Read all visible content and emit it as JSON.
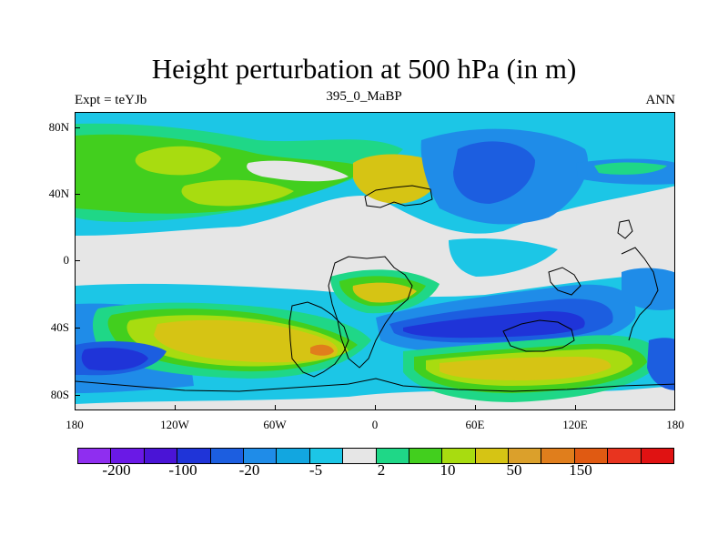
{
  "title": "Height perturbation at 500 hPa (in m)",
  "subtitle_left": "Expt = teYJb",
  "subtitle_center": "395_0_MaBP",
  "subtitle_right": "ANN",
  "y_axis_labels": [
    "80N",
    "40N",
    "0",
    "40S",
    "80S"
  ],
  "x_axis_labels": [
    "180",
    "120W",
    "60W",
    "0",
    "60E",
    "120E",
    "180"
  ],
  "colorbar": {
    "colors": [
      "#8f2ef0",
      "#6a19e6",
      "#4a14d6",
      "#1f34d8",
      "#1c5ee0",
      "#1f8ce8",
      "#12a6e0",
      "#1cc6e6",
      "#e6e6e6",
      "#1fd787",
      "#42cf1e",
      "#a8dc10",
      "#d6c414",
      "#dba02b",
      "#e07e1c",
      "#e05a12",
      "#e8341f",
      "#e01212"
    ],
    "labels": [
      "-200",
      "-100",
      "-20",
      "-5",
      "2",
      "10",
      "50",
      "150"
    ]
  },
  "map_colors": {
    "background": "#e6e6e6",
    "deep_blue": "#1f34d8",
    "blue": "#1c5ee0",
    "mid_blue": "#1f8ce8",
    "light_blue": "#1cc6e6",
    "green": "#1fd787",
    "lime": "#42cf1e",
    "yellow_green": "#a8dc10",
    "yellow": "#d6c414",
    "orange": "#dba02b",
    "dark_orange": "#e07e1c"
  }
}
